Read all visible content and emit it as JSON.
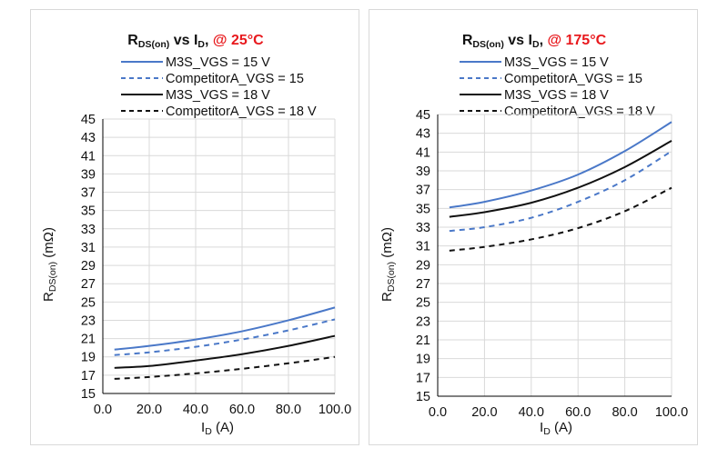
{
  "colors": {
    "m3s_15": "#4a78c8",
    "compA_15": "#4a78c8",
    "m3s_18": "#111111",
    "compA_18": "#111111",
    "highlight": "#e8191d"
  },
  "chart_data": [
    {
      "type": "line",
      "title": {
        "r": "R",
        "r_sub": "DS(on)",
        "vs": " vs I",
        "i_sub": "D",
        "comma": ", ",
        "temp": "@ 25°C"
      },
      "ylabel": {
        "r": "R",
        "sub": "DS(on)",
        "unit": " (mΩ)"
      },
      "xlabel": {
        "i": "I",
        "sub": "D",
        "unit": " (A)"
      },
      "xlim": [
        0,
        100
      ],
      "ylim": [
        15,
        45
      ],
      "x_ticks": [
        "0.0",
        "20.0",
        "40.0",
        "60.0",
        "80.0",
        "100.0"
      ],
      "y_ticks": [
        "15",
        "17",
        "19",
        "21",
        "23",
        "25",
        "27",
        "29",
        "31",
        "33",
        "35",
        "37",
        "39",
        "41",
        "43",
        "45"
      ],
      "legend_position": "top",
      "x": [
        5,
        20,
        40,
        60,
        80,
        100
      ],
      "series": [
        {
          "name": "M3S_VGS = 15 V",
          "style": "solid",
          "color": "#4a78c8",
          "values": [
            19.8,
            20.2,
            20.9,
            21.8,
            23.0,
            24.4
          ]
        },
        {
          "name": "CompetitorA_VGS = 15",
          "style": "dashed",
          "color": "#4a78c8",
          "values": [
            19.2,
            19.5,
            20.1,
            20.9,
            21.9,
            23.1
          ]
        },
        {
          "name": "M3S_VGS = 18 V",
          "style": "solid",
          "color": "#111111",
          "values": [
            17.8,
            18.0,
            18.6,
            19.3,
            20.2,
            21.3
          ]
        },
        {
          "name": "CompetitorA_VGS = 18 V",
          "style": "dashed",
          "color": "#111111",
          "values": [
            16.6,
            16.8,
            17.2,
            17.7,
            18.3,
            19.0
          ]
        }
      ]
    },
    {
      "type": "line",
      "title": {
        "r": "R",
        "r_sub": "DS(on)",
        "vs": " vs I",
        "i_sub": "D",
        "comma": ", ",
        "temp": "@ 175°C"
      },
      "ylabel": {
        "r": "R",
        "sub": "DS(on)",
        "unit": " (mΩ)"
      },
      "xlabel": {
        "i": "I",
        "sub": "D",
        "unit": " (A)"
      },
      "xlim": [
        0,
        100
      ],
      "ylim": [
        15,
        45
      ],
      "x_ticks": [
        "0.0",
        "20.0",
        "40.0",
        "60.0",
        "80.0",
        "100.0"
      ],
      "y_ticks": [
        "15",
        "17",
        "19",
        "21",
        "23",
        "25",
        "27",
        "29",
        "31",
        "33",
        "35",
        "37",
        "39",
        "41",
        "43",
        "45"
      ],
      "legend_position": "top",
      "x": [
        5,
        20,
        40,
        60,
        80,
        100
      ],
      "series": [
        {
          "name": "M3S_VGS = 15 V",
          "style": "solid",
          "color": "#4a78c8",
          "values": [
            35.1,
            35.7,
            36.9,
            38.6,
            41.1,
            44.2
          ]
        },
        {
          "name": "CompetitorA_VGS = 15",
          "style": "dashed",
          "color": "#4a78c8",
          "values": [
            32.6,
            33.0,
            34.0,
            35.7,
            38.0,
            41.1
          ]
        },
        {
          "name": "M3S_VGS = 18 V",
          "style": "solid",
          "color": "#111111",
          "values": [
            34.1,
            34.6,
            35.6,
            37.2,
            39.4,
            42.2
          ]
        },
        {
          "name": "CompetitorA_VGS = 18 V",
          "style": "dashed",
          "color": "#111111",
          "values": [
            30.5,
            30.9,
            31.7,
            32.9,
            34.7,
            37.2
          ]
        }
      ]
    }
  ]
}
